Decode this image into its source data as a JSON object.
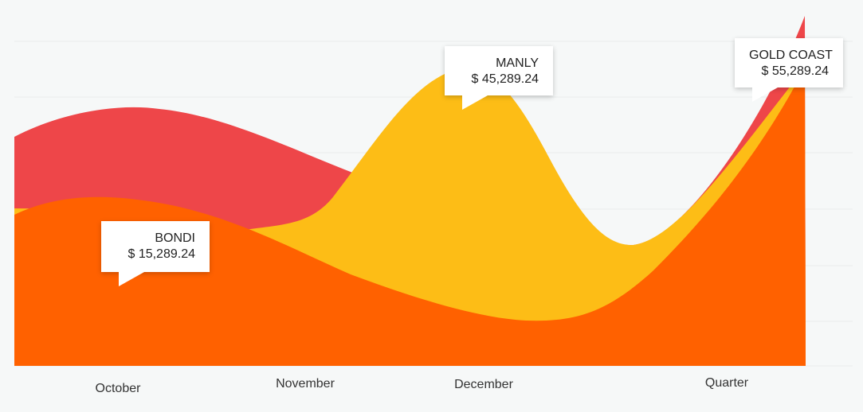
{
  "chart_data": {
    "type": "area",
    "categories": [
      "October",
      "November",
      "December",
      "Quarter"
    ],
    "series": [
      {
        "key": "red",
        "color": "#ee4649",
        "values": [
          55000,
          47000,
          28000,
          80000
        ]
      },
      {
        "key": "yellow",
        "color": "#fdbd16",
        "values": [
          28000,
          30000,
          72000,
          55000
        ]
      },
      {
        "key": "orange",
        "color": "#ff6100",
        "values": [
          30000,
          18000,
          8000,
          55000
        ]
      }
    ],
    "title": "",
    "xlabel": "",
    "ylabel": "",
    "grid": true,
    "legend": "none",
    "callouts": [
      {
        "key": "bondi",
        "name": "BONDI",
        "value": "$ 15,289.24"
      },
      {
        "key": "manly",
        "name": "MANLY",
        "value": "$ 45,289.24"
      },
      {
        "key": "gold",
        "name": "GOLD COAST",
        "value": "$ 55,289.24"
      }
    ]
  }
}
